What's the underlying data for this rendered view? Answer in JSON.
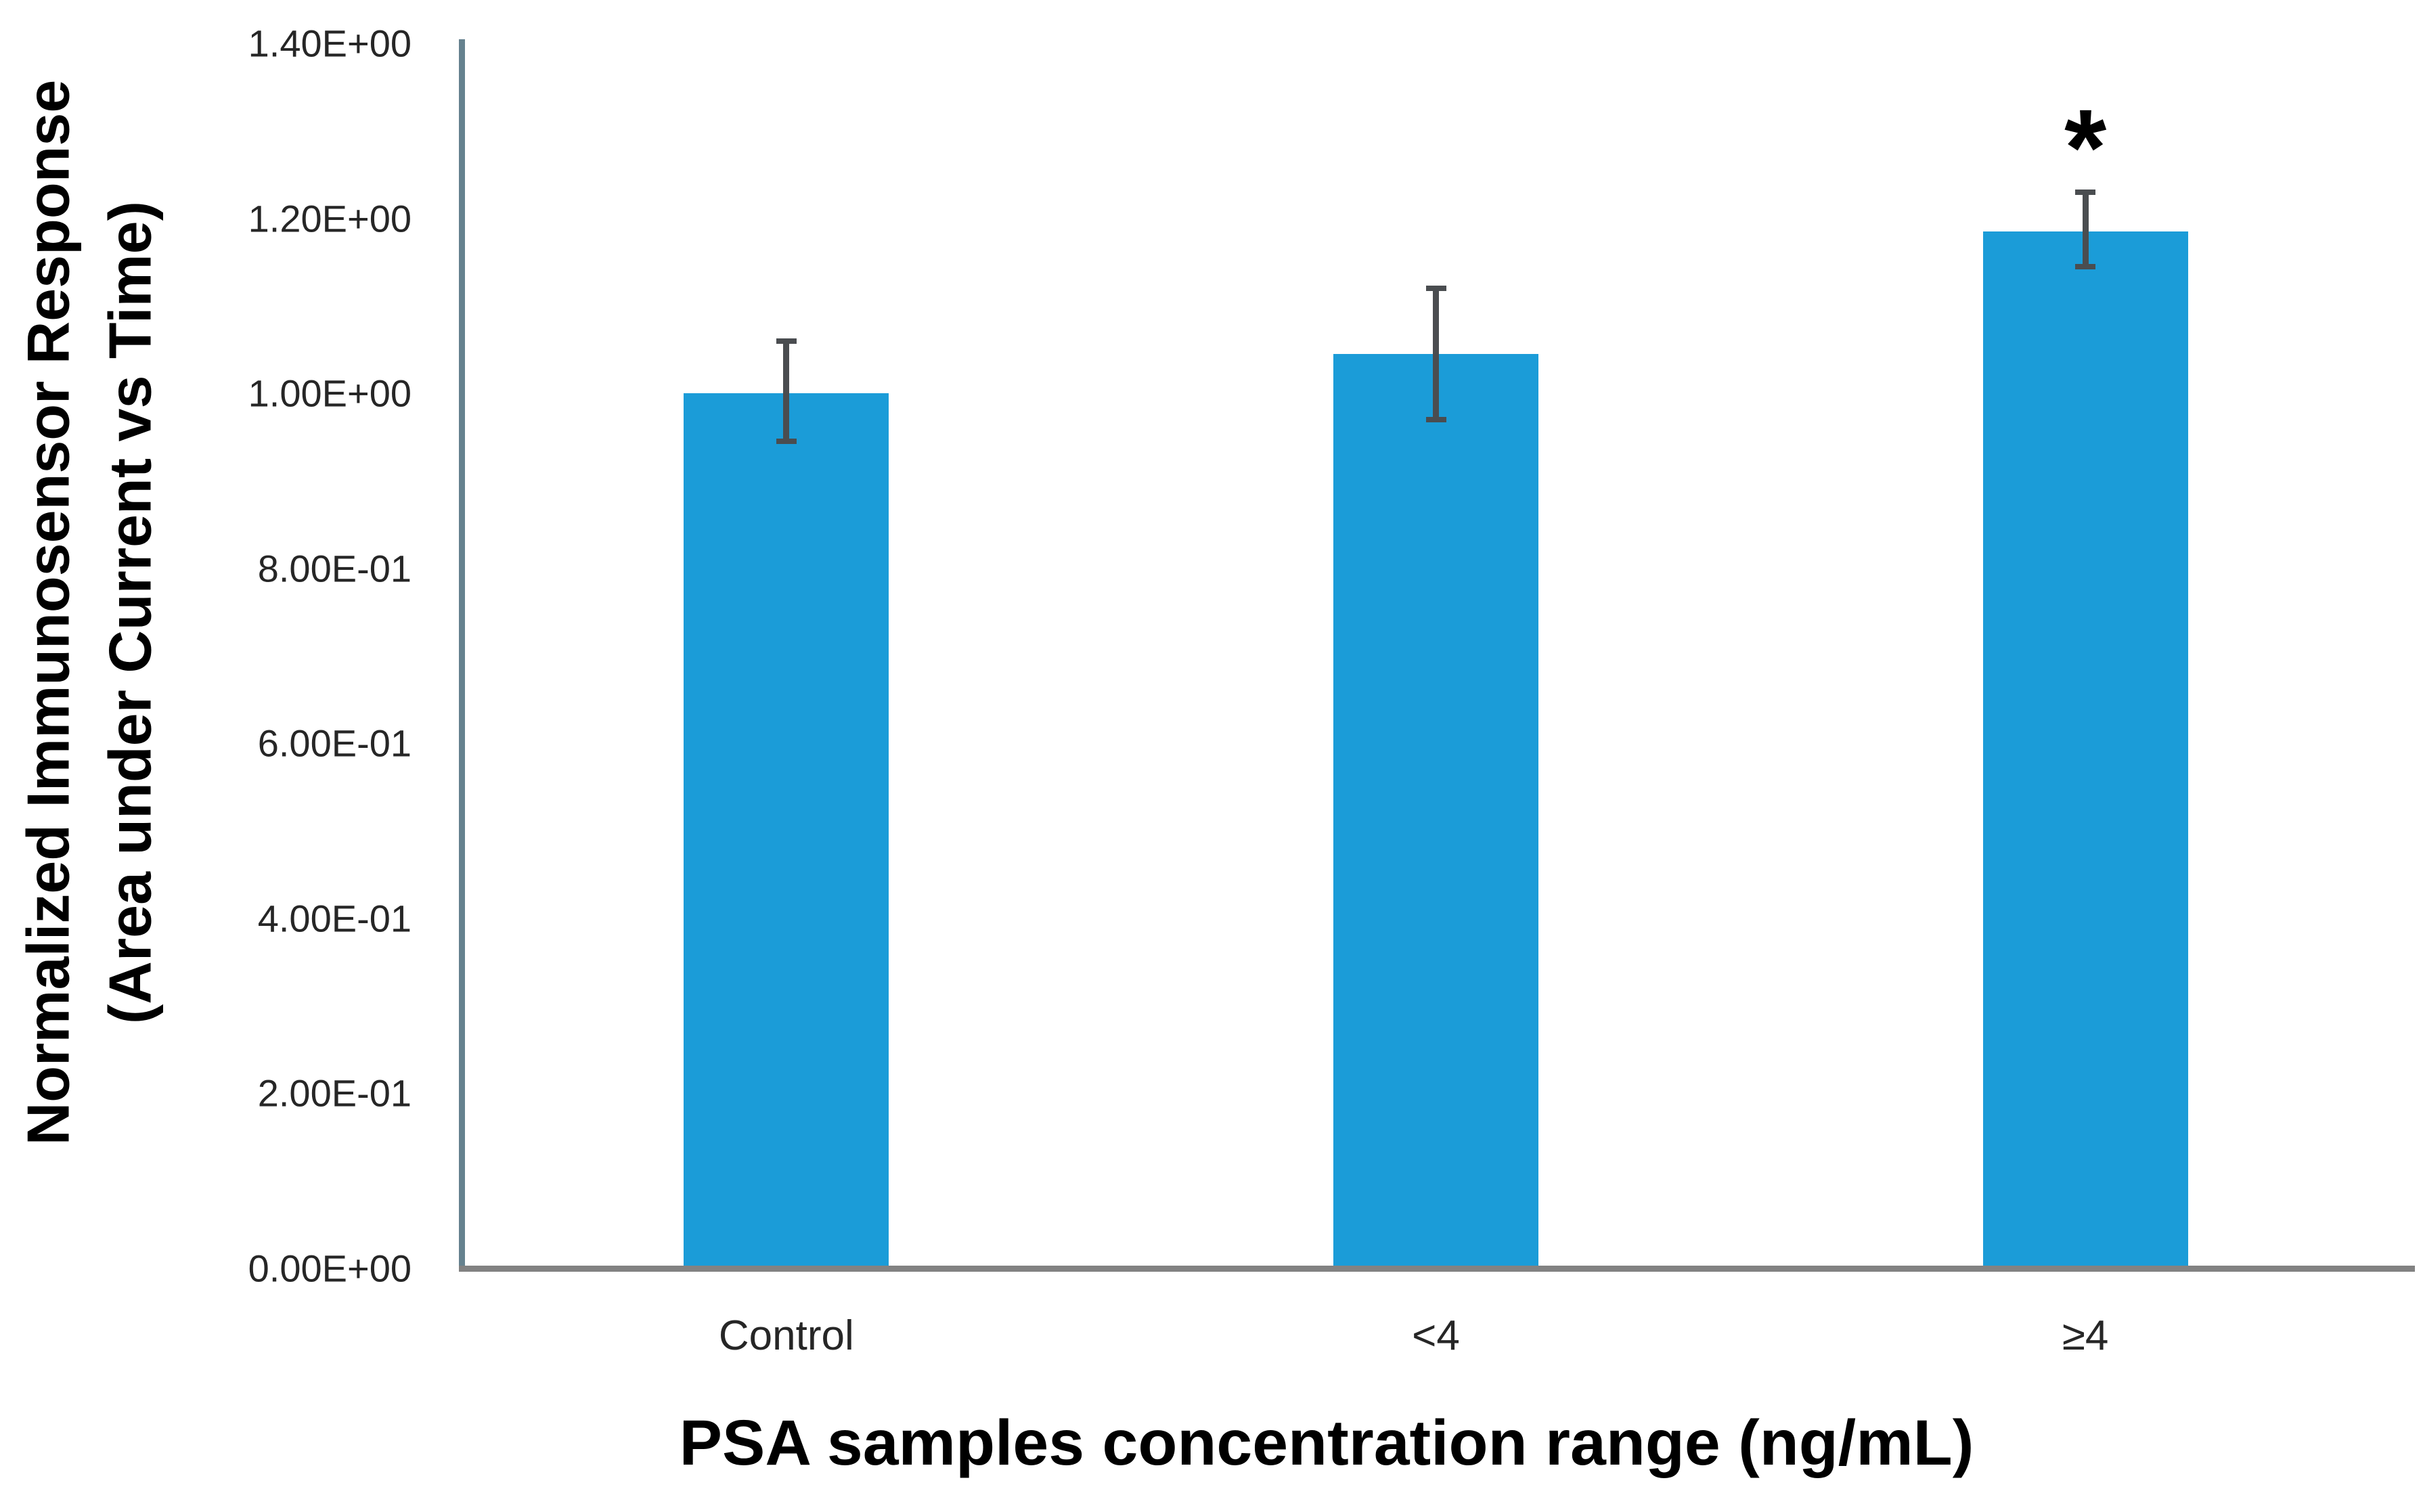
{
  "chart_data": {
    "type": "bar",
    "title": "",
    "xlabel": "PSA samples concentration range (ng/mL)",
    "ylabel_line1": "Normalized Immunosensor Response",
    "ylabel_line2": "(Area under Current vs Time)",
    "categories": [
      "Control",
      "<4",
      "≥4"
    ],
    "values": [
      1.0,
      1.045,
      1.185
    ],
    "error_up": [
      0.06,
      0.075,
      0.045
    ],
    "error_down": [
      0.055,
      0.075,
      0.04
    ],
    "annotations": [
      {
        "category_index": 2,
        "text": "*",
        "meaning": "statistically significant"
      }
    ],
    "ylim": [
      0,
      1.4
    ],
    "ytick_step": 0.2,
    "ytick_labels": [
      "0.00E+00",
      "2.00E-01",
      "4.00E-01",
      "6.00E-01",
      "8.00E-01",
      "1.00E+00",
      "1.20E+00",
      "1.40E+00"
    ],
    "grid": false,
    "legend": null,
    "bar_color": "#1B9CD8",
    "error_color": "#4A4D50",
    "y_axis_line_color": "#66828F",
    "baseline_color": "#828282",
    "text_color": "#262626"
  }
}
